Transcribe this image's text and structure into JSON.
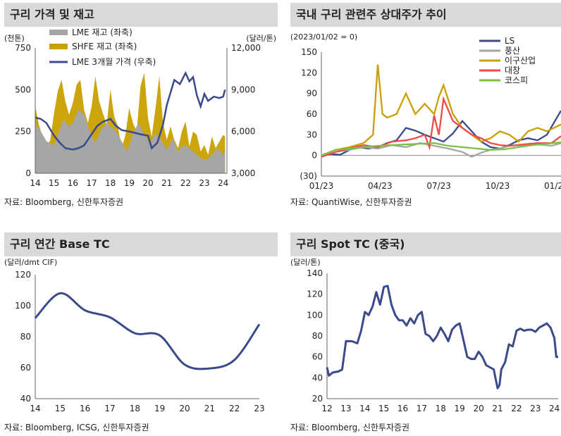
{
  "charts": {
    "c1": {
      "title": "구리 가격 및 재고",
      "unit_left": "(천톤)",
      "unit_right": "(달러/톤)",
      "source": "자료: Bloomberg, 신한투자증권",
      "chart_data": {
        "type": "area",
        "categories": [
          "14",
          "15",
          "16",
          "17",
          "18",
          "19",
          "20",
          "21",
          "22",
          "23",
          "24"
        ],
        "ylim_left": [
          0,
          750
        ],
        "yticks_left": [
          0,
          250,
          500,
          750
        ],
        "ylim_right": [
          3000,
          12000
        ],
        "yticks_right": [
          "3,000",
          "6,000",
          "9,000",
          "12,000"
        ],
        "series": [
          {
            "name": "LME 재고 (좌축)",
            "axis": "left",
            "color": "#a6a6a6",
            "x": [
              14,
              14.3,
              14.6,
              15,
              15.2,
              15.5,
              15.8,
              16,
              16.3,
              16.6,
              16.9,
              17.2,
              17.5,
              17.8,
              18,
              18.3,
              18.6,
              18.9,
              19.2,
              19.5,
              19.8,
              20.1,
              20.4,
              20.7,
              21,
              21.3,
              21.6,
              21.9,
              22.2,
              22.5,
              22.8,
              23.1,
              23.4,
              23.7,
              24,
              24.1
            ],
            "values": [
              300,
              250,
              190,
              170,
              230,
              320,
              280,
              300,
              380,
              350,
              250,
              180,
              260,
              300,
              280,
              250,
              190,
              130,
              240,
              300,
              230,
              180,
              240,
              200,
              140,
              210,
              130,
              170,
              150,
              120,
              90,
              80,
              110,
              150,
              110,
              150
            ]
          },
          {
            "name": "SHFE 재고 (좌축)",
            "axis": "left",
            "color": "#c9a000",
            "x": [
              14,
              14.2,
              14.4,
              14.6,
              14.8,
              15,
              15.2,
              15.4,
              15.6,
              15.8,
              16,
              16.2,
              16.4,
              16.6,
              16.8,
              17,
              17.2,
              17.4,
              17.6,
              17.8,
              18,
              18.2,
              18.4,
              18.6,
              18.8,
              19,
              19.2,
              19.4,
              19.6,
              19.8,
              20,
              20.2,
              20.4,
              20.6,
              20.8,
              21,
              21.2,
              21.4,
              21.6,
              21.8,
              22,
              22.2,
              22.4,
              22.6,
              22.8,
              23,
              23.2,
              23.4,
              23.6,
              23.8,
              24,
              24.1
            ],
            "values": [
              400,
              290,
              210,
              150,
              200,
              360,
              490,
              560,
              430,
              350,
              420,
              530,
              560,
              380,
              300,
              400,
              580,
              430,
              360,
              290,
              500,
              340,
              280,
              150,
              230,
              390,
              300,
              250,
              520,
              600,
              330,
              220,
              390,
              580,
              300,
              200,
              280,
              200,
              150,
              250,
              310,
              160,
              250,
              230,
              130,
              170,
              110,
              220,
              150,
              190,
              230,
              220
            ]
          },
          {
            "name": "LME 3개월 가격 (우축)",
            "axis": "right",
            "color": "#3b4a8a",
            "x": [
              14,
              14.3,
              14.6,
              15,
              15.3,
              15.6,
              16,
              16.3,
              16.6,
              17,
              17.3,
              17.6,
              18,
              18.3,
              18.6,
              19,
              19.3,
              19.6,
              20,
              20.2,
              20.5,
              20.8,
              21,
              21.2,
              21.4,
              21.7,
              22,
              22.2,
              22.4,
              22.6,
              22.8,
              23,
              23.2,
              23.5,
              23.8,
              24,
              24.1
            ],
            "values": [
              7000,
              6900,
              6600,
              5700,
              5200,
              4800,
              4700,
              4800,
              5000,
              5800,
              6400,
              6700,
              6900,
              6400,
              6100,
              6000,
              5900,
              5800,
              5700,
              4800,
              5200,
              6500,
              7900,
              8800,
              9700,
              9400,
              10200,
              9600,
              9900,
              8600,
              7800,
              8700,
              8200,
              8500,
              8400,
              8500,
              9000
            ]
          }
        ]
      }
    },
    "c2": {
      "title": "국내 구리 관련주 상대주가 추이",
      "unit_left": "(2023/01/02 = 0)",
      "source": "자료: QuantiWise, 신한투자증권",
      "chart_data": {
        "type": "line",
        "categories": [
          "01/23",
          "04/23",
          "07/23",
          "10/23",
          "01/24"
        ],
        "ylim": [
          -30,
          150
        ],
        "yticks": [
          "(30)",
          "0",
          "30",
          "60",
          "90",
          "120",
          "150"
        ],
        "series": [
          {
            "name": "LS",
            "color": "#3b4a8a",
            "x": [
              0,
              0.2,
              0.4,
              0.6,
              0.8,
              1,
              1.2,
              1.4,
              1.6,
              1.8,
              2,
              2.2,
              2.4,
              2.6,
              2.8,
              3,
              3.2,
              3.4,
              3.6,
              3.8,
              4,
              4.2,
              4.4,
              4.6,
              4.8,
              5.1
            ],
            "values": [
              0,
              2,
              1,
              8,
              12,
              10,
              12,
              18,
              22,
              40,
              36,
              30,
              25,
              20,
              32,
              50,
              35,
              20,
              12,
              10,
              15,
              22,
              25,
              22,
              30,
              65
            ]
          },
          {
            "name": "풍산",
            "color": "#a6a6a6",
            "x": [
              0,
              0.3,
              0.6,
              0.9,
              1.2,
              1.5,
              1.8,
              2.1,
              2.4,
              2.7,
              3,
              3.2,
              3.4,
              3.6,
              3.8,
              4,
              4.3,
              4.6,
              4.9,
              5.1
            ],
            "values": [
              -2,
              5,
              8,
              12,
              10,
              15,
              12,
              18,
              14,
              10,
              5,
              -2,
              4,
              8,
              10,
              14,
              15,
              16,
              14,
              18
            ]
          },
          {
            "name": "이구산업",
            "color": "#c9a000",
            "x": [
              0,
              0.3,
              0.6,
              0.9,
              1.1,
              1.2,
              1.3,
              1.4,
              1.6,
              1.8,
              2,
              2.2,
              2.4,
              2.5,
              2.6,
              2.8,
              3,
              3.2,
              3.4,
              3.6,
              3.8,
              4,
              4.2,
              4.4,
              4.6,
              4.8,
              5.1
            ],
            "values": [
              0,
              8,
              12,
              18,
              30,
              132,
              60,
              55,
              60,
              90,
              60,
              75,
              60,
              85,
              102,
              60,
              40,
              30,
              20,
              25,
              35,
              30,
              20,
              35,
              40,
              35,
              45
            ]
          },
          {
            "name": "대창",
            "color": "#f04a4a",
            "x": [
              0,
              0.3,
              0.6,
              0.9,
              1.2,
              1.5,
              1.8,
              2,
              2.2,
              2.3,
              2.4,
              2.5,
              2.6,
              2.8,
              3,
              3.2,
              3.4,
              3.6,
              3.8,
              4,
              4.3,
              4.6,
              4.9,
              5.1
            ],
            "values": [
              -2,
              5,
              10,
              15,
              12,
              20,
              22,
              25,
              30,
              12,
              58,
              30,
              82,
              50,
              40,
              30,
              25,
              18,
              15,
              14,
              16,
              18,
              18,
              28
            ]
          },
          {
            "name": "코스피",
            "color": "#7ac143",
            "x": [
              0,
              0.3,
              0.6,
              0.9,
              1.2,
              1.5,
              1.8,
              2.1,
              2.4,
              2.7,
              3,
              3.3,
              3.6,
              3.9,
              4.2,
              4.5,
              4.8,
              5.1
            ],
            "values": [
              0,
              8,
              10,
              12,
              14,
              15,
              16,
              17,
              18,
              14,
              12,
              10,
              8,
              9,
              12,
              15,
              17,
              19
            ]
          }
        ]
      }
    },
    "c3": {
      "title": "구리 연간 Base TC",
      "unit_left": "(달러/dmt CIF)",
      "source": "자료: Bloomberg, ICSG, 신한투자증권",
      "chart_data": {
        "type": "line",
        "categories": [
          "14",
          "15",
          "16",
          "17",
          "18",
          "19",
          "20",
          "21",
          "22",
          "23"
        ],
        "ylim": [
          40,
          120
        ],
        "yticks": [
          40,
          60,
          80,
          100,
          120
        ],
        "series": [
          {
            "color": "#3b4a8a",
            "x": [
              14,
              15,
              16,
              17,
              18,
              19,
              20,
              21,
              22,
              23
            ],
            "values": [
              92,
              108,
              97,
              92.5,
              82.25,
              80.8,
              62,
              59.5,
              65,
              88
            ]
          }
        ]
      }
    },
    "c4": {
      "title": "구리 Spot TC (중국)",
      "unit_left": "(달러/톤)",
      "source": "자료: Bloomberg, 신한투자증권",
      "chart_data": {
        "type": "line",
        "categories": [
          "12",
          "13",
          "14",
          "15",
          "16",
          "17",
          "18",
          "19",
          "20",
          "21",
          "22",
          "23",
          "24"
        ],
        "ylim": [
          20,
          140
        ],
        "yticks": [
          20,
          40,
          60,
          80,
          100,
          120,
          140
        ],
        "series": [
          {
            "color": "#3b4a8a",
            "x": [
              12,
              12.1,
              12.3,
              12.6,
              12.8,
              13,
              13.3,
              13.6,
              13.8,
              14,
              14.2,
              14.4,
              14.6,
              14.8,
              15,
              15.2,
              15.4,
              15.6,
              15.8,
              16,
              16.2,
              16.4,
              16.6,
              16.8,
              17,
              17.2,
              17.4,
              17.6,
              17.8,
              18,
              18.2,
              18.4,
              18.6,
              18.8,
              19,
              19.2,
              19.4,
              19.6,
              19.8,
              20,
              20.2,
              20.4,
              20.6,
              20.8,
              21,
              21.1,
              21.2,
              21.4,
              21.6,
              21.8,
              22,
              22.2,
              22.4,
              22.6,
              22.8,
              23,
              23.2,
              23.4,
              23.6,
              23.8,
              24,
              24.1,
              24.2
            ],
            "values": [
              50,
              42,
              45,
              46,
              48,
              75,
              75,
              73,
              85,
              103,
              100,
              108,
              122,
              110,
              127,
              128,
              110,
              100,
              95,
              95,
              90,
              97,
              92,
              100,
              103,
              82,
              80,
              75,
              80,
              88,
              82,
              75,
              86,
              90,
              92,
              76,
              60,
              58,
              58,
              65,
              60,
              52,
              50,
              48,
              30,
              33,
              48,
              55,
              72,
              70,
              85,
              87,
              85,
              86,
              86,
              84,
              88,
              90,
              92,
              88,
              78,
              60,
              60
            ]
          }
        ]
      }
    }
  }
}
